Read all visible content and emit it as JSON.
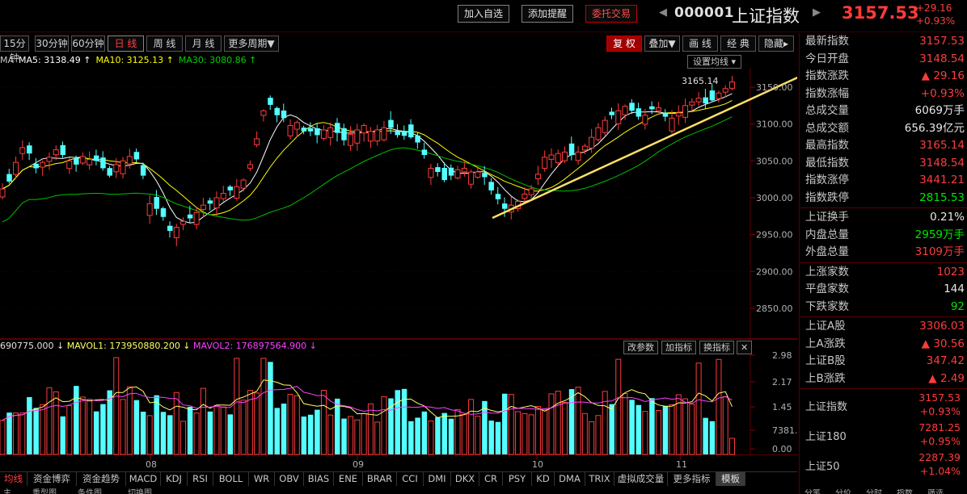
{
  "toolbar": {
    "add_watch": "加入自选",
    "add_alert": "添加提醒",
    "entrust_trade": "委托交易",
    "prev_arrow": "◀",
    "next_arrow": "▶",
    "code": "000001",
    "name": "上证指数",
    "last": "3157.53",
    "change": "+29.16",
    "change_pct": "+0.93%"
  },
  "periods": [
    "15分钟",
    "30分钟",
    "60分钟",
    "日 线",
    "周 线",
    "月 线",
    "更多周期▼"
  ],
  "active_period": "日 线",
  "right_tabs": [
    "复 权",
    "叠加▼",
    "画 线",
    "经 典",
    "隐藏▸"
  ],
  "ma_legend": {
    "prefix": "MA",
    "ma5": "MA5: 3138.49 ↑",
    "ma10": "MA10: 3125.13 ↑",
    "ma30": "MA30: 3080.86 ↑",
    "set_button": "设置均线 ▾"
  },
  "colors": {
    "up": "#ff3c3c",
    "down": "#54ffff",
    "ma5": "#ffffff",
    "ma10": "#ffff00",
    "ma30": "#00c000",
    "trendline": "#ffe066",
    "mavol2": "#ff40ff"
  },
  "chart_data": {
    "type": "candlestick",
    "yaxis_ticks": [
      "3150.00",
      "3100.00",
      "3050.00",
      "3000.00",
      "2950.00",
      "2900.00",
      "2850.00"
    ],
    "xaxis_ticks": [
      "08",
      "09",
      "10",
      "11"
    ],
    "high_annotation": "3165.14",
    "volume_yaxis_ticks": [
      "2.98",
      "2.17",
      "1.45",
      "7381.00",
      "0.00"
    ]
  },
  "volume_legend": {
    "vol": "690775.000 ↓",
    "mavol1": "MAVOL1: 173950880.200 ↓",
    "mavol2": "MAVOL2: 176897564.900 ↓",
    "btn_params": "改参数",
    "btn_add": "加指标",
    "btn_switch": "换指标",
    "btn_close": "✕"
  },
  "bottom_tabs": [
    "均线",
    "资金博弈",
    "资金趋势",
    "MACD",
    "KDJ",
    "RSI",
    "BOLL",
    "WR",
    "OBV",
    "BIAS",
    "ENE",
    "BRAR",
    "CCI",
    "DMI",
    "DKX",
    "CR",
    "PSY",
    "KD",
    "DMA",
    "TRIX",
    "虚拟成交量",
    "更多指标",
    "模板"
  ],
  "bottom_active": "均线",
  "bottom2": [
    "主",
    "重型图",
    "条件图",
    "切换图"
  ],
  "right_panel": {
    "rows1": [
      {
        "label": "最新指数",
        "value": "3157.53",
        "color": "red"
      },
      {
        "label": "今日开盘",
        "value": "3148.54",
        "color": "red"
      },
      {
        "label": "指数涨跌",
        "value": "▲ 29.16",
        "color": "red"
      },
      {
        "label": "指数涨幅",
        "value": "+0.93%",
        "color": "red"
      },
      {
        "label": "总成交量",
        "value": "6069万手",
        "color": "white"
      },
      {
        "label": "总成交额",
        "value": "656.39亿元",
        "color": "white"
      },
      {
        "label": "最高指数",
        "value": "3165.14",
        "color": "red"
      },
      {
        "label": "最低指数",
        "value": "3148.54",
        "color": "red"
      },
      {
        "label": "指数涨停",
        "value": "3441.21",
        "color": "red"
      },
      {
        "label": "指数跌停",
        "value": "2815.53",
        "color": "green"
      }
    ],
    "rows2": [
      {
        "label": "上证换手",
        "value": "0.21%",
        "color": "white"
      },
      {
        "label": "内盘总量",
        "value": "2959万手",
        "color": "green"
      },
      {
        "label": "外盘总量",
        "value": "3109万手",
        "color": "red"
      }
    ],
    "rows3": [
      {
        "label": "上涨家数",
        "value": "1023",
        "color": "red"
      },
      {
        "label": "平盘家数",
        "value": "144",
        "color": "white"
      },
      {
        "label": "下跌家数",
        "value": "92",
        "color": "green"
      }
    ],
    "rows4": [
      {
        "label": "上证A股",
        "value": "3306.03",
        "color": "red"
      },
      {
        "label": "上A涨跌",
        "value": "▲ 30.56",
        "color": "red"
      },
      {
        "label": "上证B股",
        "value": "347.42",
        "color": "red"
      },
      {
        "label": "上B涨跌",
        "value": "▲ 2.49",
        "color": "red"
      }
    ],
    "idx1": {
      "label": "上证指数",
      "value": "3157.53",
      "pct": "+0.93%"
    },
    "idx2": {
      "label": "上证180",
      "value": "7281.25",
      "pct": "+0.95%"
    },
    "idx3": {
      "label": "上证50",
      "value": "2287.39",
      "pct": "+1.04%"
    },
    "bottom_tabs": [
      "分笔",
      "分价",
      "分时",
      "指数",
      "筛选"
    ]
  }
}
